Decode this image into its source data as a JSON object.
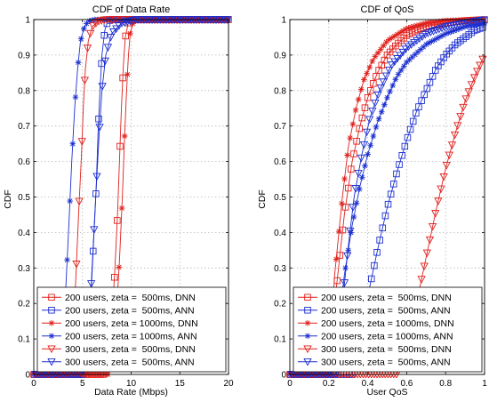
{
  "chart_data": [
    {
      "type": "line",
      "title": "CDF of Data Rate",
      "xlabel": "Data Rate (Mbps)",
      "ylabel": "CDF",
      "xlim": [
        0,
        20
      ],
      "ylim": [
        0,
        1
      ],
      "xticks": [
        "0",
        "5",
        "10",
        "15",
        "20"
      ],
      "yticks": [
        "0",
        "0.1",
        "0.2",
        "0.3",
        "0.4",
        "0.5",
        "0.6",
        "0.7",
        "0.8",
        "0.9",
        "1"
      ],
      "grid": true,
      "legend_position": "bottom-right",
      "series": [
        {
          "name": "200 users, zeta =  500ms, DNN",
          "color": "#e0201c",
          "marker": "square",
          "x": [
            0,
            7.2,
            7.6,
            8.0,
            8.3,
            8.6,
            8.8,
            9.0,
            9.2,
            9.4,
            9.7,
            10.0,
            11.0,
            20
          ],
          "y": [
            0,
            0.0,
            0.05,
            0.15,
            0.28,
            0.45,
            0.6,
            0.75,
            0.87,
            0.95,
            0.99,
            1.0,
            1.0,
            1.0
          ]
        },
        {
          "name": "200 users, zeta =  500ms, ANN",
          "color": "#1c2fd0",
          "marker": "square",
          "x": [
            0,
            5.2,
            5.5,
            5.8,
            6.1,
            6.4,
            6.6,
            6.8,
            7.0,
            7.3,
            7.6,
            8.0,
            20
          ],
          "y": [
            0,
            0.0,
            0.06,
            0.18,
            0.35,
            0.52,
            0.68,
            0.8,
            0.9,
            0.97,
            0.995,
            1.0,
            1.0
          ]
        },
        {
          "name": "200 users, zeta = 1000ms, DNN",
          "color": "#e0201c",
          "marker": "star",
          "x": [
            0,
            7.7,
            8.1,
            8.5,
            8.8,
            9.1,
            9.3,
            9.5,
            9.7,
            9.9,
            10.2,
            10.6,
            20
          ],
          "y": [
            0,
            0.0,
            0.06,
            0.18,
            0.32,
            0.5,
            0.65,
            0.78,
            0.89,
            0.96,
            0.99,
            1.0,
            1.0
          ]
        },
        {
          "name": "200 users, zeta = 1000ms, ANN",
          "color": "#1c2fd0",
          "marker": "star",
          "x": [
            0,
            2.7,
            3.0,
            3.3,
            3.6,
            3.9,
            4.2,
            4.5,
            4.8,
            5.2,
            5.6,
            6.2,
            20
          ],
          "y": [
            0,
            0.0,
            0.1,
            0.25,
            0.42,
            0.6,
            0.75,
            0.86,
            0.94,
            0.98,
            0.995,
            1.0,
            1.0
          ]
        },
        {
          "name": "300 users, zeta =  500ms, DNN",
          "color": "#e0201c",
          "marker": "triangle-down",
          "x": [
            0,
            3.7,
            4.0,
            4.3,
            4.6,
            4.9,
            5.1,
            5.3,
            5.6,
            6.0,
            6.6,
            7.4,
            20
          ],
          "y": [
            0,
            0.0,
            0.1,
            0.26,
            0.45,
            0.62,
            0.76,
            0.86,
            0.94,
            0.98,
            0.995,
            1.0,
            1.0
          ]
        },
        {
          "name": "300 users, zeta =  500ms, ANN",
          "color": "#1c2fd0",
          "marker": "triangle-down",
          "x": [
            0,
            5.0,
            5.4,
            5.8,
            6.1,
            6.4,
            6.7,
            7.0,
            7.4,
            8.0,
            9.0,
            10.5,
            20
          ],
          "y": [
            0,
            0.0,
            0.08,
            0.2,
            0.36,
            0.52,
            0.67,
            0.8,
            0.9,
            0.96,
            0.99,
            1.0,
            1.0
          ]
        }
      ]
    },
    {
      "type": "line",
      "title": "CDF of QoS",
      "xlabel": "User QoS",
      "ylabel": "CDF",
      "xlim": [
        0,
        1
      ],
      "ylim": [
        0,
        1
      ],
      "xticks": [
        "0",
        "0.2",
        "0.4",
        "0.6",
        "0.8",
        "1"
      ],
      "yticks": [
        "0",
        "0.1",
        "0.2",
        "0.3",
        "0.4",
        "0.5",
        "0.6",
        "0.7",
        "0.8",
        "0.9",
        "1"
      ],
      "grid": true,
      "legend_position": "bottom-right",
      "series": [
        {
          "name": "200 users, zeta =  500ms, DNN",
          "color": "#e0201c",
          "marker": "square",
          "x": [
            0,
            0.2,
            0.24,
            0.28,
            0.32,
            0.36,
            0.4,
            0.45,
            0.5,
            0.55,
            0.6,
            0.65,
            0.7,
            0.8,
            0.9,
            1.0
          ],
          "y": [
            0,
            0.0,
            0.25,
            0.45,
            0.6,
            0.7,
            0.78,
            0.85,
            0.9,
            0.93,
            0.955,
            0.97,
            0.98,
            0.99,
            0.997,
            1.0
          ]
        },
        {
          "name": "200 users, zeta =  500ms, ANN",
          "color": "#1c2fd0",
          "marker": "square",
          "x": [
            0,
            0.32,
            0.36,
            0.4,
            0.45,
            0.5,
            0.55,
            0.6,
            0.65,
            0.7,
            0.75,
            0.8,
            0.85,
            0.9,
            0.95,
            1.0
          ],
          "y": [
            0,
            0.0,
            0.1,
            0.22,
            0.35,
            0.47,
            0.57,
            0.66,
            0.74,
            0.8,
            0.86,
            0.9,
            0.93,
            0.95,
            0.97,
            0.98
          ]
        },
        {
          "name": "200 users, zeta = 1000ms, DNN",
          "color": "#e0201c",
          "marker": "star",
          "x": [
            0,
            0.2,
            0.23,
            0.27,
            0.3,
            0.34,
            0.38,
            0.43,
            0.5,
            0.6,
            0.7,
            0.8,
            1.0
          ],
          "y": [
            0,
            0.0,
            0.28,
            0.5,
            0.64,
            0.75,
            0.83,
            0.89,
            0.94,
            0.975,
            0.99,
            0.997,
            1.0
          ]
        },
        {
          "name": "200 users, zeta = 1000ms, ANN",
          "color": "#1c2fd0",
          "marker": "star",
          "x": [
            0,
            0.22,
            0.25,
            0.28,
            0.32,
            0.36,
            0.4,
            0.45,
            0.5,
            0.55,
            0.6,
            0.7,
            0.8,
            0.9,
            1.0
          ],
          "y": [
            0,
            0.0,
            0.14,
            0.28,
            0.42,
            0.53,
            0.62,
            0.71,
            0.78,
            0.84,
            0.88,
            0.93,
            0.96,
            0.98,
            0.99
          ]
        },
        {
          "name": "300 users, zeta =  500ms, DNN",
          "color": "#e0201c",
          "marker": "triangle-down",
          "x": [
            0,
            0.55,
            0.6,
            0.65,
            0.7,
            0.75,
            0.8,
            0.85,
            0.9,
            0.95,
            1.0
          ],
          "y": [
            0,
            0.0,
            0.08,
            0.2,
            0.33,
            0.46,
            0.58,
            0.68,
            0.77,
            0.84,
            0.9
          ]
        },
        {
          "name": "300 users, zeta =  500ms, ANN",
          "color": "#1c2fd0",
          "marker": "triangle-down",
          "x": [
            0,
            0.24,
            0.27,
            0.3,
            0.33,
            0.37,
            0.41,
            0.46,
            0.52,
            0.6,
            0.7,
            0.8,
            0.9,
            1.0
          ],
          "y": [
            0,
            0.0,
            0.2,
            0.36,
            0.5,
            0.62,
            0.72,
            0.8,
            0.87,
            0.92,
            0.96,
            0.98,
            0.99,
            1.0
          ]
        }
      ]
    }
  ]
}
